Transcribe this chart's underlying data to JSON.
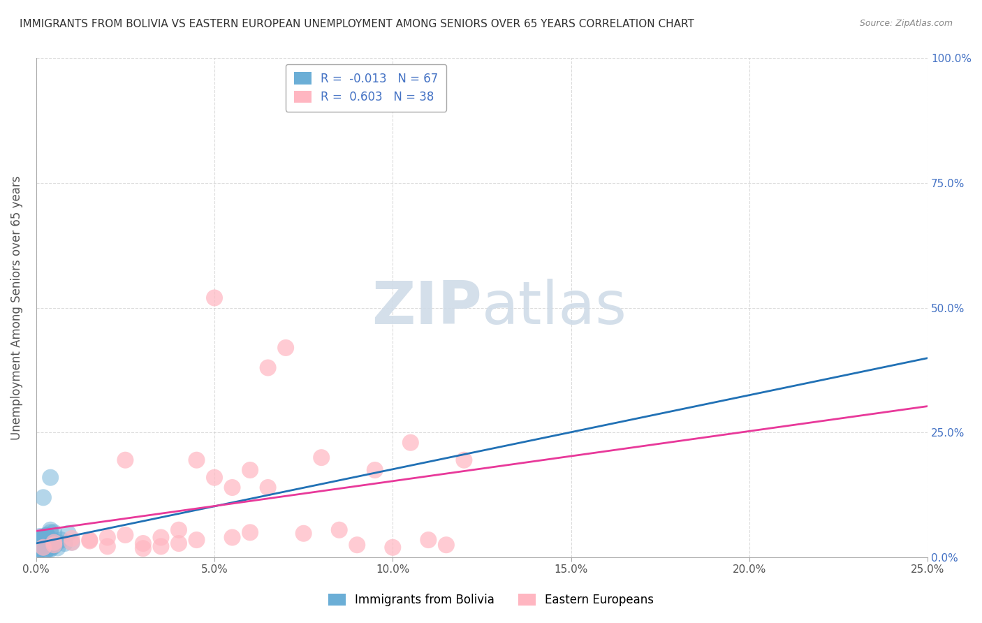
{
  "title": "IMMIGRANTS FROM BOLIVIA VS EASTERN EUROPEAN UNEMPLOYMENT AMONG SENIORS OVER 65 YEARS CORRELATION CHART",
  "source": "Source: ZipAtlas.com",
  "xlabel_bottom": [
    "Immigrants from Bolivia",
    "Eastern Europeans"
  ],
  "ylabel": "Unemployment Among Seniors over 65 years",
  "xlim": [
    0,
    0.25
  ],
  "ylim": [
    0,
    1.0
  ],
  "xticks": [
    0,
    0.05,
    0.1,
    0.15,
    0.2,
    0.25
  ],
  "xtick_labels": [
    "0.0%",
    "5.0%",
    "10.0%",
    "15.0%",
    "20.0%",
    "25.0%"
  ],
  "yticks": [
    0,
    0.25,
    0.5,
    0.75,
    1.0
  ],
  "right_ytick_labels": [
    "0.0%",
    "25.0%",
    "50.0%",
    "75.0%",
    "100.0%"
  ],
  "blue_color": "#6baed6",
  "pink_color": "#ffb6c1",
  "blue_line_color": "#2171b5",
  "pink_line_color": "#e8399a",
  "R_blue": -0.013,
  "N_blue": 67,
  "R_pink": 0.603,
  "N_pink": 38,
  "background_color": "#ffffff",
  "watermark_color": "#d0dce8",
  "blue_scatter_x": [
    0.001,
    0.002,
    0.001,
    0.003,
    0.002,
    0.001,
    0.004,
    0.002,
    0.003,
    0.001,
    0.005,
    0.002,
    0.001,
    0.003,
    0.004,
    0.002,
    0.001,
    0.006,
    0.003,
    0.002,
    0.001,
    0.004,
    0.002,
    0.003,
    0.001,
    0.005,
    0.002,
    0.001,
    0.003,
    0.002,
    0.007,
    0.002,
    0.001,
    0.004,
    0.003,
    0.002,
    0.001,
    0.006,
    0.003,
    0.002,
    0.001,
    0.004,
    0.008,
    0.002,
    0.003,
    0.001,
    0.005,
    0.003,
    0.002,
    0.001,
    0.009,
    0.002,
    0.003,
    0.001,
    0.004,
    0.002,
    0.001,
    0.003,
    0.01,
    0.002,
    0.001,
    0.004,
    0.002,
    0.003,
    0.001,
    0.005,
    0.002
  ],
  "blue_scatter_y": [
    0.03,
    0.025,
    0.02,
    0.035,
    0.028,
    0.022,
    0.018,
    0.04,
    0.015,
    0.032,
    0.027,
    0.038,
    0.016,
    0.044,
    0.02,
    0.033,
    0.025,
    0.019,
    0.037,
    0.023,
    0.029,
    0.016,
    0.041,
    0.035,
    0.018,
    0.05,
    0.022,
    0.031,
    0.017,
    0.026,
    0.035,
    0.04,
    0.015,
    0.038,
    0.022,
    0.12,
    0.018,
    0.03,
    0.045,
    0.025,
    0.02,
    0.055,
    0.028,
    0.033,
    0.015,
    0.042,
    0.022,
    0.038,
    0.025,
    0.03,
    0.048,
    0.02,
    0.032,
    0.018,
    0.16,
    0.035,
    0.025,
    0.042,
    0.03,
    0.022,
    0.015,
    0.05,
    0.035,
    0.028,
    0.038,
    0.025,
    0.02
  ],
  "pink_scatter_x": [
    0.002,
    0.005,
    0.01,
    0.015,
    0.02,
    0.025,
    0.03,
    0.035,
    0.04,
    0.045,
    0.05,
    0.055,
    0.06,
    0.065,
    0.07,
    0.075,
    0.08,
    0.085,
    0.09,
    0.095,
    0.1,
    0.105,
    0.11,
    0.115,
    0.12,
    0.005,
    0.01,
    0.015,
    0.02,
    0.025,
    0.03,
    0.035,
    0.04,
    0.045,
    0.05,
    0.055,
    0.06,
    0.065
  ],
  "pink_scatter_y": [
    0.02,
    0.025,
    0.03,
    0.035,
    0.04,
    0.045,
    0.018,
    0.022,
    0.028,
    0.035,
    0.52,
    0.04,
    0.05,
    0.38,
    0.42,
    0.048,
    0.2,
    0.055,
    0.025,
    0.175,
    0.02,
    0.23,
    0.035,
    0.025,
    0.195,
    0.03,
    0.038,
    0.033,
    0.022,
    0.195,
    0.028,
    0.04,
    0.055,
    0.195,
    0.16,
    0.14,
    0.175,
    0.14
  ]
}
